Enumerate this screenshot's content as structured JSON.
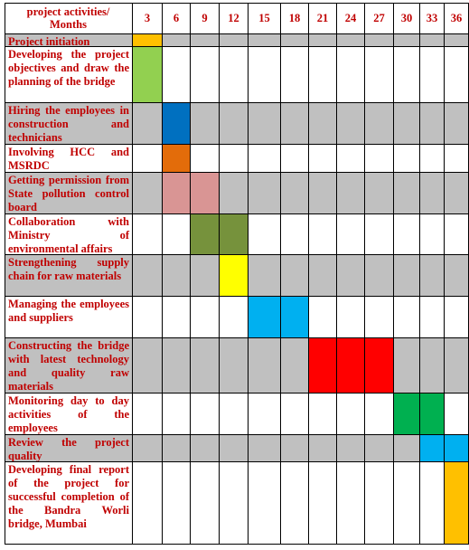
{
  "chart_data": {
    "type": "table",
    "header_label": "project activities/ Months",
    "columns": [
      "3",
      "6",
      "9",
      "12",
      "15",
      "18",
      "21",
      "24",
      "27",
      "30",
      "33",
      "36"
    ],
    "tasks": [
      {
        "label": "Project initiation",
        "cols": [
          0
        ],
        "color": "#ffc000",
        "shaded": true
      },
      {
        "label": "Developing the project objectives and draw the planning of the bridge",
        "cols": [
          0
        ],
        "color": "#92d050",
        "shaded": false
      },
      {
        "label": "Hiring the employees in construction and technicians",
        "cols": [
          1
        ],
        "color": "#0070c0",
        "shaded": true
      },
      {
        "label": "Involving HCC and MSRDC",
        "cols": [
          1
        ],
        "color": "#e36c0a",
        "shaded": false
      },
      {
        "label": "Getting permission from State pollution control board",
        "cols": [
          1,
          2
        ],
        "color": "#d99594",
        "shaded": true
      },
      {
        "label": "Collaboration with Ministry of environmental affairs",
        "cols": [
          2,
          3
        ],
        "color": "#76923c",
        "shaded": false
      },
      {
        "label": "Strengthening supply chain for raw materials",
        "cols": [
          3
        ],
        "color": "#ffff00",
        "shaded": true
      },
      {
        "label": "Managing the employees and suppliers",
        "cols": [
          4,
          5
        ],
        "color": "#00b0f0",
        "shaded": false
      },
      {
        "label": "Constructing the bridge with latest technology and quality raw materials",
        "cols": [
          6,
          7,
          8
        ],
        "color": "#ff0000",
        "shaded": true
      },
      {
        "label": "Monitoring day to day activities of the employees",
        "cols": [
          9,
          10
        ],
        "color": "#00b050",
        "shaded": false
      },
      {
        "label": "Review the project quality",
        "cols": [
          10,
          11
        ],
        "color": "#00b0f0",
        "shaded": true
      },
      {
        "label": "Developing final report of the project for successful completion of the Bandra Worli bridge, Mumbai",
        "cols": [
          11
        ],
        "color": "#ffc000",
        "shaded": false
      }
    ],
    "colors": {
      "shade": "#c0c0c0",
      "text": "#c00000",
      "grid": "#000000"
    }
  }
}
